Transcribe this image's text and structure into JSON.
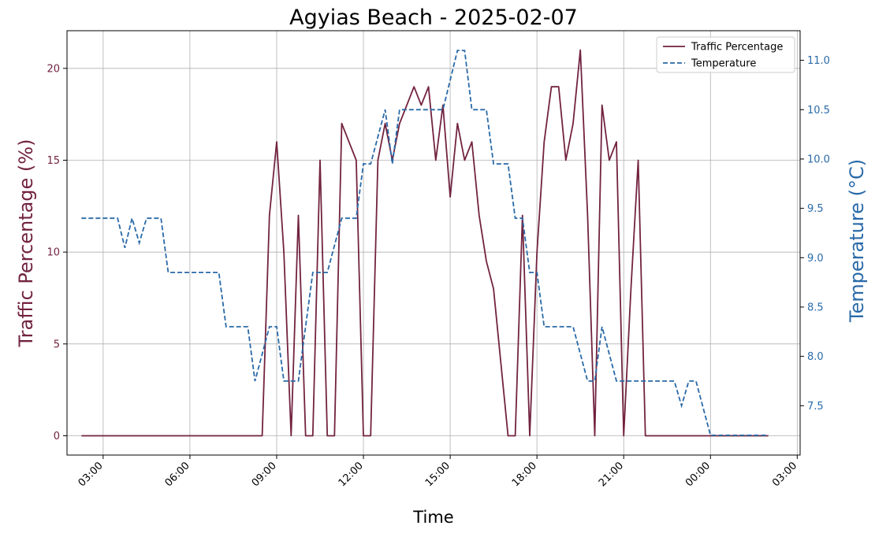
{
  "chart_data": {
    "type": "line",
    "title": "Agyias Beach - 2025-02-07",
    "xlabel": "Time",
    "ylabel_left": "Traffic Percentage (%)",
    "ylabel_right": "Temperature (°C)",
    "x_ticks": [
      "03:00",
      "06:00",
      "09:00",
      "12:00",
      "15:00",
      "18:00",
      "21:00",
      "00:00",
      "03:00"
    ],
    "x_tick_hours": [
      3,
      6,
      9,
      12,
      15,
      18,
      21,
      24,
      27
    ],
    "xlim_hours": [
      1.75,
      27.1
    ],
    "ylim_left": [
      -1.05,
      22.05
    ],
    "ylim_right": [
      7.0,
      11.3
    ],
    "y_ticks_left": [
      "0",
      "5",
      "10",
      "15",
      "20"
    ],
    "y_ticks_right": [
      "7.5",
      "8.0",
      "8.5",
      "9.0",
      "9.5",
      "10.0",
      "10.5",
      "11.0"
    ],
    "grid": true,
    "legend_position": "top-right",
    "colors": {
      "traffic": "#722340",
      "temperature": "#2a6aa8",
      "left_axis_text": "#722340",
      "right_axis_text": "#2a6aa8"
    },
    "series": [
      {
        "name": "Traffic Percentage",
        "style": "solid",
        "points": [
          [
            2.25,
            0
          ],
          [
            3,
            0
          ],
          [
            4,
            0
          ],
          [
            5,
            0
          ],
          [
            6,
            0
          ],
          [
            7,
            0
          ],
          [
            8,
            0
          ],
          [
            8.5,
            0
          ],
          [
            8.75,
            12
          ],
          [
            9,
            16
          ],
          [
            9.25,
            10
          ],
          [
            9.5,
            0
          ],
          [
            9.75,
            12
          ],
          [
            10,
            0
          ],
          [
            10.25,
            0
          ],
          [
            10.5,
            15
          ],
          [
            10.75,
            0
          ],
          [
            11,
            0
          ],
          [
            11.25,
            17
          ],
          [
            11.5,
            16
          ],
          [
            11.75,
            15
          ],
          [
            12,
            0
          ],
          [
            12.25,
            0
          ],
          [
            12.5,
            15
          ],
          [
            12.75,
            17
          ],
          [
            13,
            15
          ],
          [
            13.25,
            17
          ],
          [
            13.5,
            18
          ],
          [
            13.75,
            19
          ],
          [
            14,
            18
          ],
          [
            14.25,
            19
          ],
          [
            14.5,
            15
          ],
          [
            14.75,
            18
          ],
          [
            15,
            13
          ],
          [
            15.25,
            17
          ],
          [
            15.5,
            15
          ],
          [
            15.75,
            16
          ],
          [
            16,
            12
          ],
          [
            16.25,
            9.5
          ],
          [
            16.5,
            8
          ],
          [
            16.75,
            4
          ],
          [
            17,
            0
          ],
          [
            17.25,
            0
          ],
          [
            17.5,
            12
          ],
          [
            17.75,
            0
          ],
          [
            18,
            10
          ],
          [
            18.25,
            16
          ],
          [
            18.5,
            19
          ],
          [
            18.75,
            19
          ],
          [
            19,
            15
          ],
          [
            19.25,
            17
          ],
          [
            19.5,
            21
          ],
          [
            19.75,
            12
          ],
          [
            20,
            0
          ],
          [
            20.25,
            18
          ],
          [
            20.5,
            15
          ],
          [
            20.75,
            16
          ],
          [
            21,
            0
          ],
          [
            21.25,
            8
          ],
          [
            21.5,
            15
          ],
          [
            21.75,
            0
          ],
          [
            22,
            0
          ],
          [
            23,
            0
          ],
          [
            24,
            0
          ],
          [
            25,
            0
          ],
          [
            26,
            0
          ]
        ]
      },
      {
        "name": "Temperature",
        "style": "dashed",
        "points": [
          [
            2.25,
            9.4
          ],
          [
            3.5,
            9.4
          ],
          [
            3.75,
            9.1
          ],
          [
            4,
            9.4
          ],
          [
            4.25,
            9.15
          ],
          [
            4.5,
            9.4
          ],
          [
            5,
            9.4
          ],
          [
            5.25,
            8.85
          ],
          [
            7,
            8.85
          ],
          [
            7.25,
            8.3
          ],
          [
            8,
            8.3
          ],
          [
            8.25,
            7.75
          ],
          [
            8.75,
            8.3
          ],
          [
            9,
            8.3
          ],
          [
            9.25,
            7.75
          ],
          [
            9.75,
            7.75
          ],
          [
            10.25,
            8.85
          ],
          [
            10.75,
            8.85
          ],
          [
            11.25,
            9.4
          ],
          [
            11.75,
            9.4
          ],
          [
            12,
            9.95
          ],
          [
            12.25,
            9.95
          ],
          [
            12.75,
            10.5
          ],
          [
            13,
            9.95
          ],
          [
            13.25,
            10.5
          ],
          [
            14.75,
            10.5
          ],
          [
            15.25,
            11.1
          ],
          [
            15.5,
            11.1
          ],
          [
            15.75,
            10.5
          ],
          [
            16.25,
            10.5
          ],
          [
            16.5,
            9.95
          ],
          [
            17,
            9.95
          ],
          [
            17.25,
            9.4
          ],
          [
            17.5,
            9.4
          ],
          [
            17.75,
            8.85
          ],
          [
            18,
            8.85
          ],
          [
            18.25,
            8.3
          ],
          [
            19.25,
            8.3
          ],
          [
            19.75,
            7.75
          ],
          [
            20,
            7.75
          ],
          [
            20.25,
            8.3
          ],
          [
            20.75,
            7.75
          ],
          [
            22.75,
            7.75
          ],
          [
            23,
            7.5
          ],
          [
            23.25,
            7.75
          ],
          [
            23.5,
            7.75
          ],
          [
            24,
            7.2
          ],
          [
            26,
            7.2
          ]
        ]
      }
    ]
  }
}
